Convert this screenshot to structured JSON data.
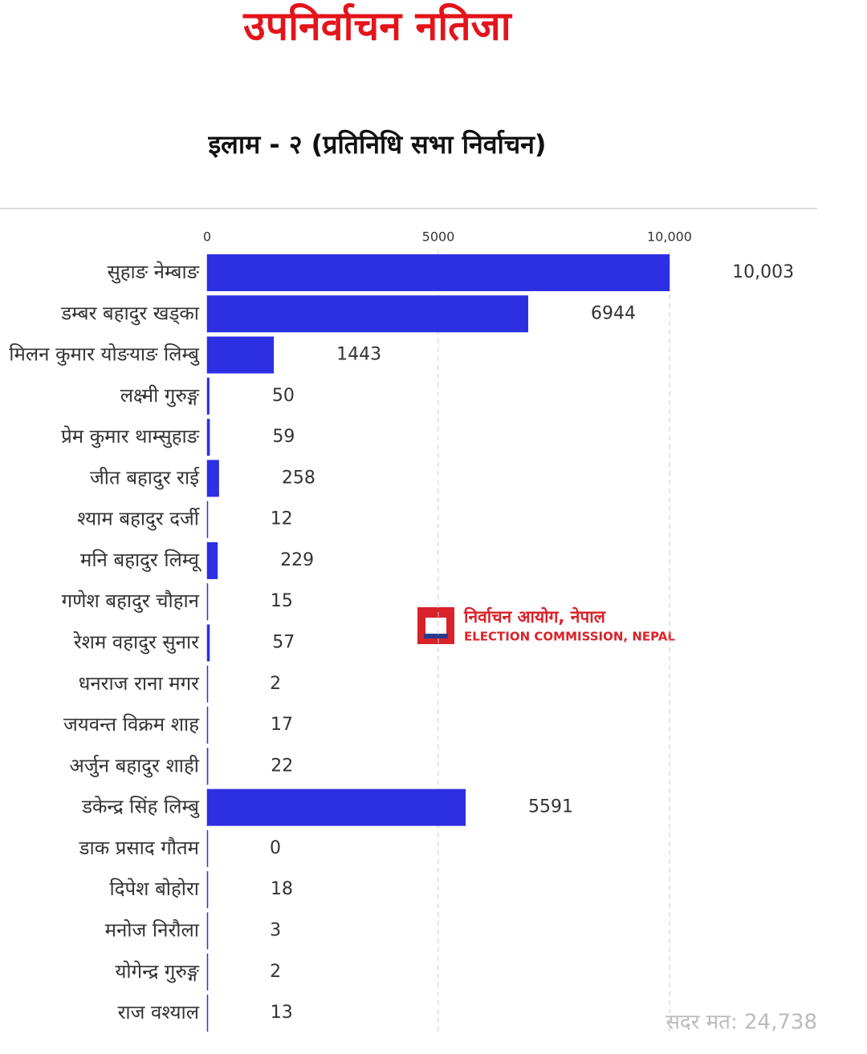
{
  "chart_data": {
    "type": "barh",
    "title": "उपनिर्वाचन नतिजा",
    "subtitle": "इलाम - २ (प्रतिनिधि सभा निर्वाचन)",
    "categories": [
      "सुहाङ नेम्बाङ",
      "डम्बर बहादुर खड्का",
      "मिलन कुमार योङयाङ लिम्बु",
      "लक्ष्मी गुरुङ्ग",
      "प्रेम कुमार थाम्सुहाङ",
      "जीत बहादुर राई",
      "श्याम बहादुर दर्जी",
      "मनि बहादुर लिम्वू",
      "गणेश बहादुर चौहान",
      "रेशम वहादुर सुनार",
      "धनराज राना मगर",
      "जयवन्त विक्रम शाह",
      "अर्जुन बहादुर शाही",
      "डकेन्द्र सिंह लिम्बु",
      "डाक प्रसाद गौतम",
      "दिपेश बोहोरा",
      "मनोज निरौला",
      "योगेन्द्र गुरुङ्ग",
      "राज वश्याल"
    ],
    "values": [
      10003,
      6944,
      1443,
      50,
      59,
      258,
      12,
      229,
      15,
      57,
      2,
      17,
      22,
      5591,
      0,
      18,
      3,
      2,
      13
    ],
    "value_labels": [
      "10,003",
      "6944",
      "1443",
      "50",
      "59",
      "258",
      "12",
      "229",
      "15",
      "57",
      "2",
      "17",
      "22",
      "5591",
      "0",
      "18",
      "3",
      "2",
      "13"
    ],
    "color": "#2d2fe3",
    "xlim": [
      0,
      10000
    ],
    "xticks": [
      0,
      5000,
      {
        "value": 10000,
        "label": "10,000"
      }
    ],
    "grid": true,
    "watermark": [
      "निर्वाचन आयोग, नेपाल",
      "ELECTION COMMISSION, NEPAL"
    ],
    "footer": "सदर मत: 24,738"
  }
}
